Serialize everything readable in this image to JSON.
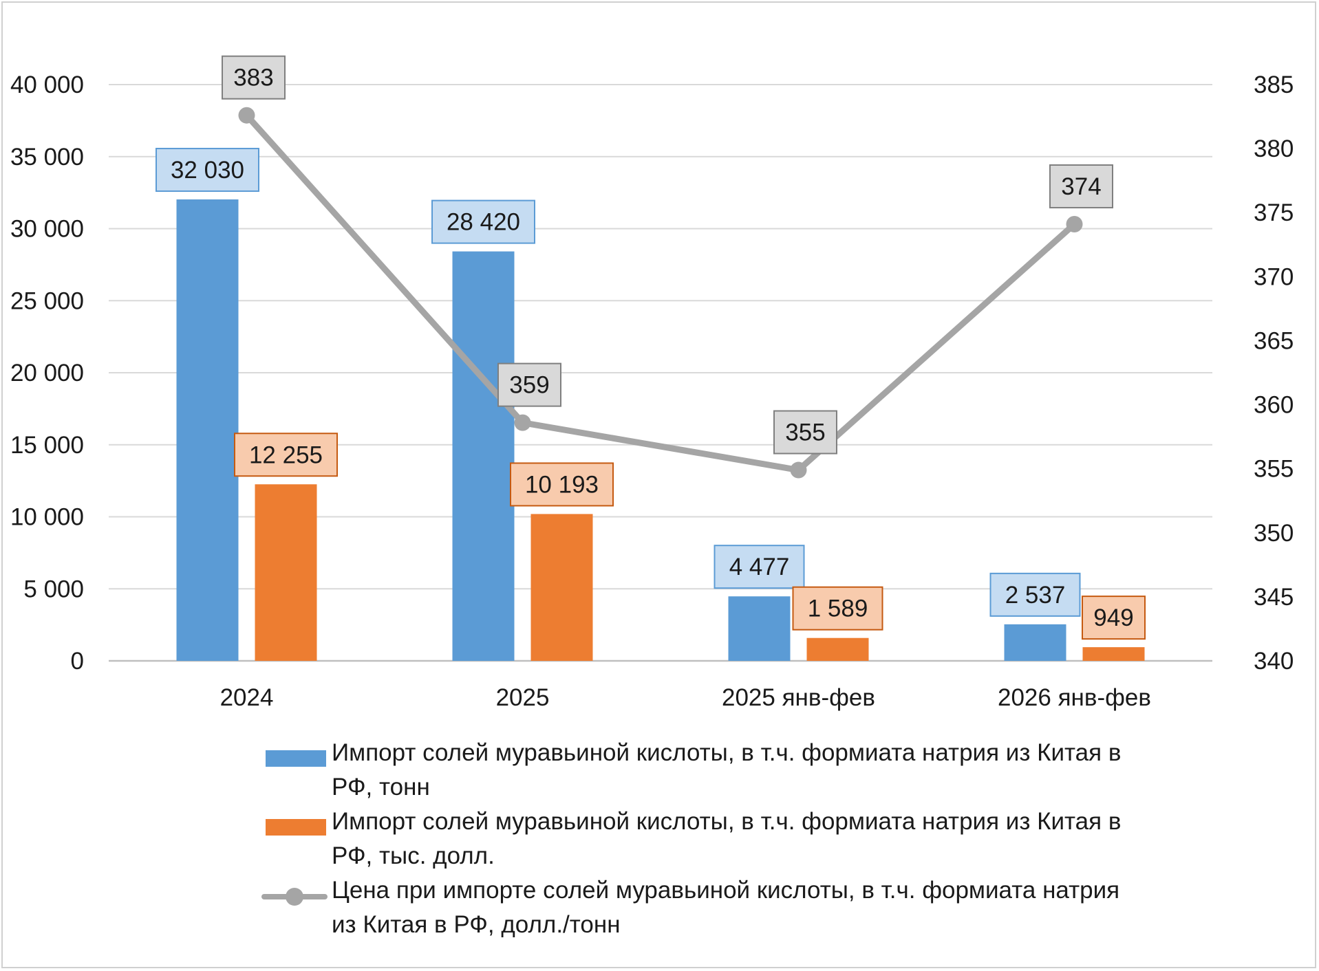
{
  "chart_data": {
    "type": "bar",
    "categories": [
      "2024",
      "2025",
      "2025 янв-фев",
      "2026 янв-фев"
    ],
    "series": [
      {
        "name": "Импорт солей муравьиной кислоты, в т.ч. формиата натрия из Китая в РФ, тонн",
        "type": "bar",
        "axis": "left",
        "values": [
          32030,
          28420,
          4477,
          2537
        ],
        "labels": [
          "32 030",
          "28 420",
          "4 477",
          "2 537"
        ],
        "color": "#5b9bd5",
        "label_fill": "#c5dcf2",
        "label_border": "#5b9bd5"
      },
      {
        "name": "Импорт солей муравьиной кислоты, в т.ч. формиата натрия из Китая в РФ, тыс. долл.",
        "type": "bar",
        "axis": "left",
        "values": [
          12255,
          10193,
          1589,
          949
        ],
        "labels": [
          "12 255",
          "10 193",
          "1 589",
          "949"
        ],
        "color": "#ed7d31",
        "label_fill": "#f8cbad",
        "label_border": "#c55a11"
      },
      {
        "name": "Цена при импорте солей муравьиной кислоты, в т.ч. формиата натрия из Китая в РФ, долл./тонн",
        "type": "line",
        "axis": "right",
        "values": [
          382.6,
          358.6,
          354.9,
          374.1
        ],
        "labels": [
          "383",
          "359",
          "355",
          "374"
        ],
        "color": "#a5a5a5",
        "label_fill": "#d9d9d9",
        "label_border": "#7f7f7f"
      }
    ],
    "y_left": {
      "ylim": [
        0,
        40000
      ],
      "ticks": [
        0,
        5000,
        10000,
        15000,
        20000,
        25000,
        30000,
        35000,
        40000
      ],
      "tick_labels": [
        "0",
        "5 000",
        "10 000",
        "15 000",
        "20 000",
        "25 000",
        "30 000",
        "35 000",
        "40 000"
      ]
    },
    "y_right": {
      "ylim": [
        340,
        385
      ],
      "ticks": [
        340,
        345,
        350,
        355,
        360,
        365,
        370,
        375,
        380,
        385
      ],
      "tick_labels": [
        "340",
        "345",
        "350",
        "355",
        "360",
        "365",
        "370",
        "375",
        "380",
        "385"
      ]
    },
    "grid": true,
    "legend_position": "bottom",
    "title": "",
    "xlabel": "",
    "ylabel": ""
  }
}
